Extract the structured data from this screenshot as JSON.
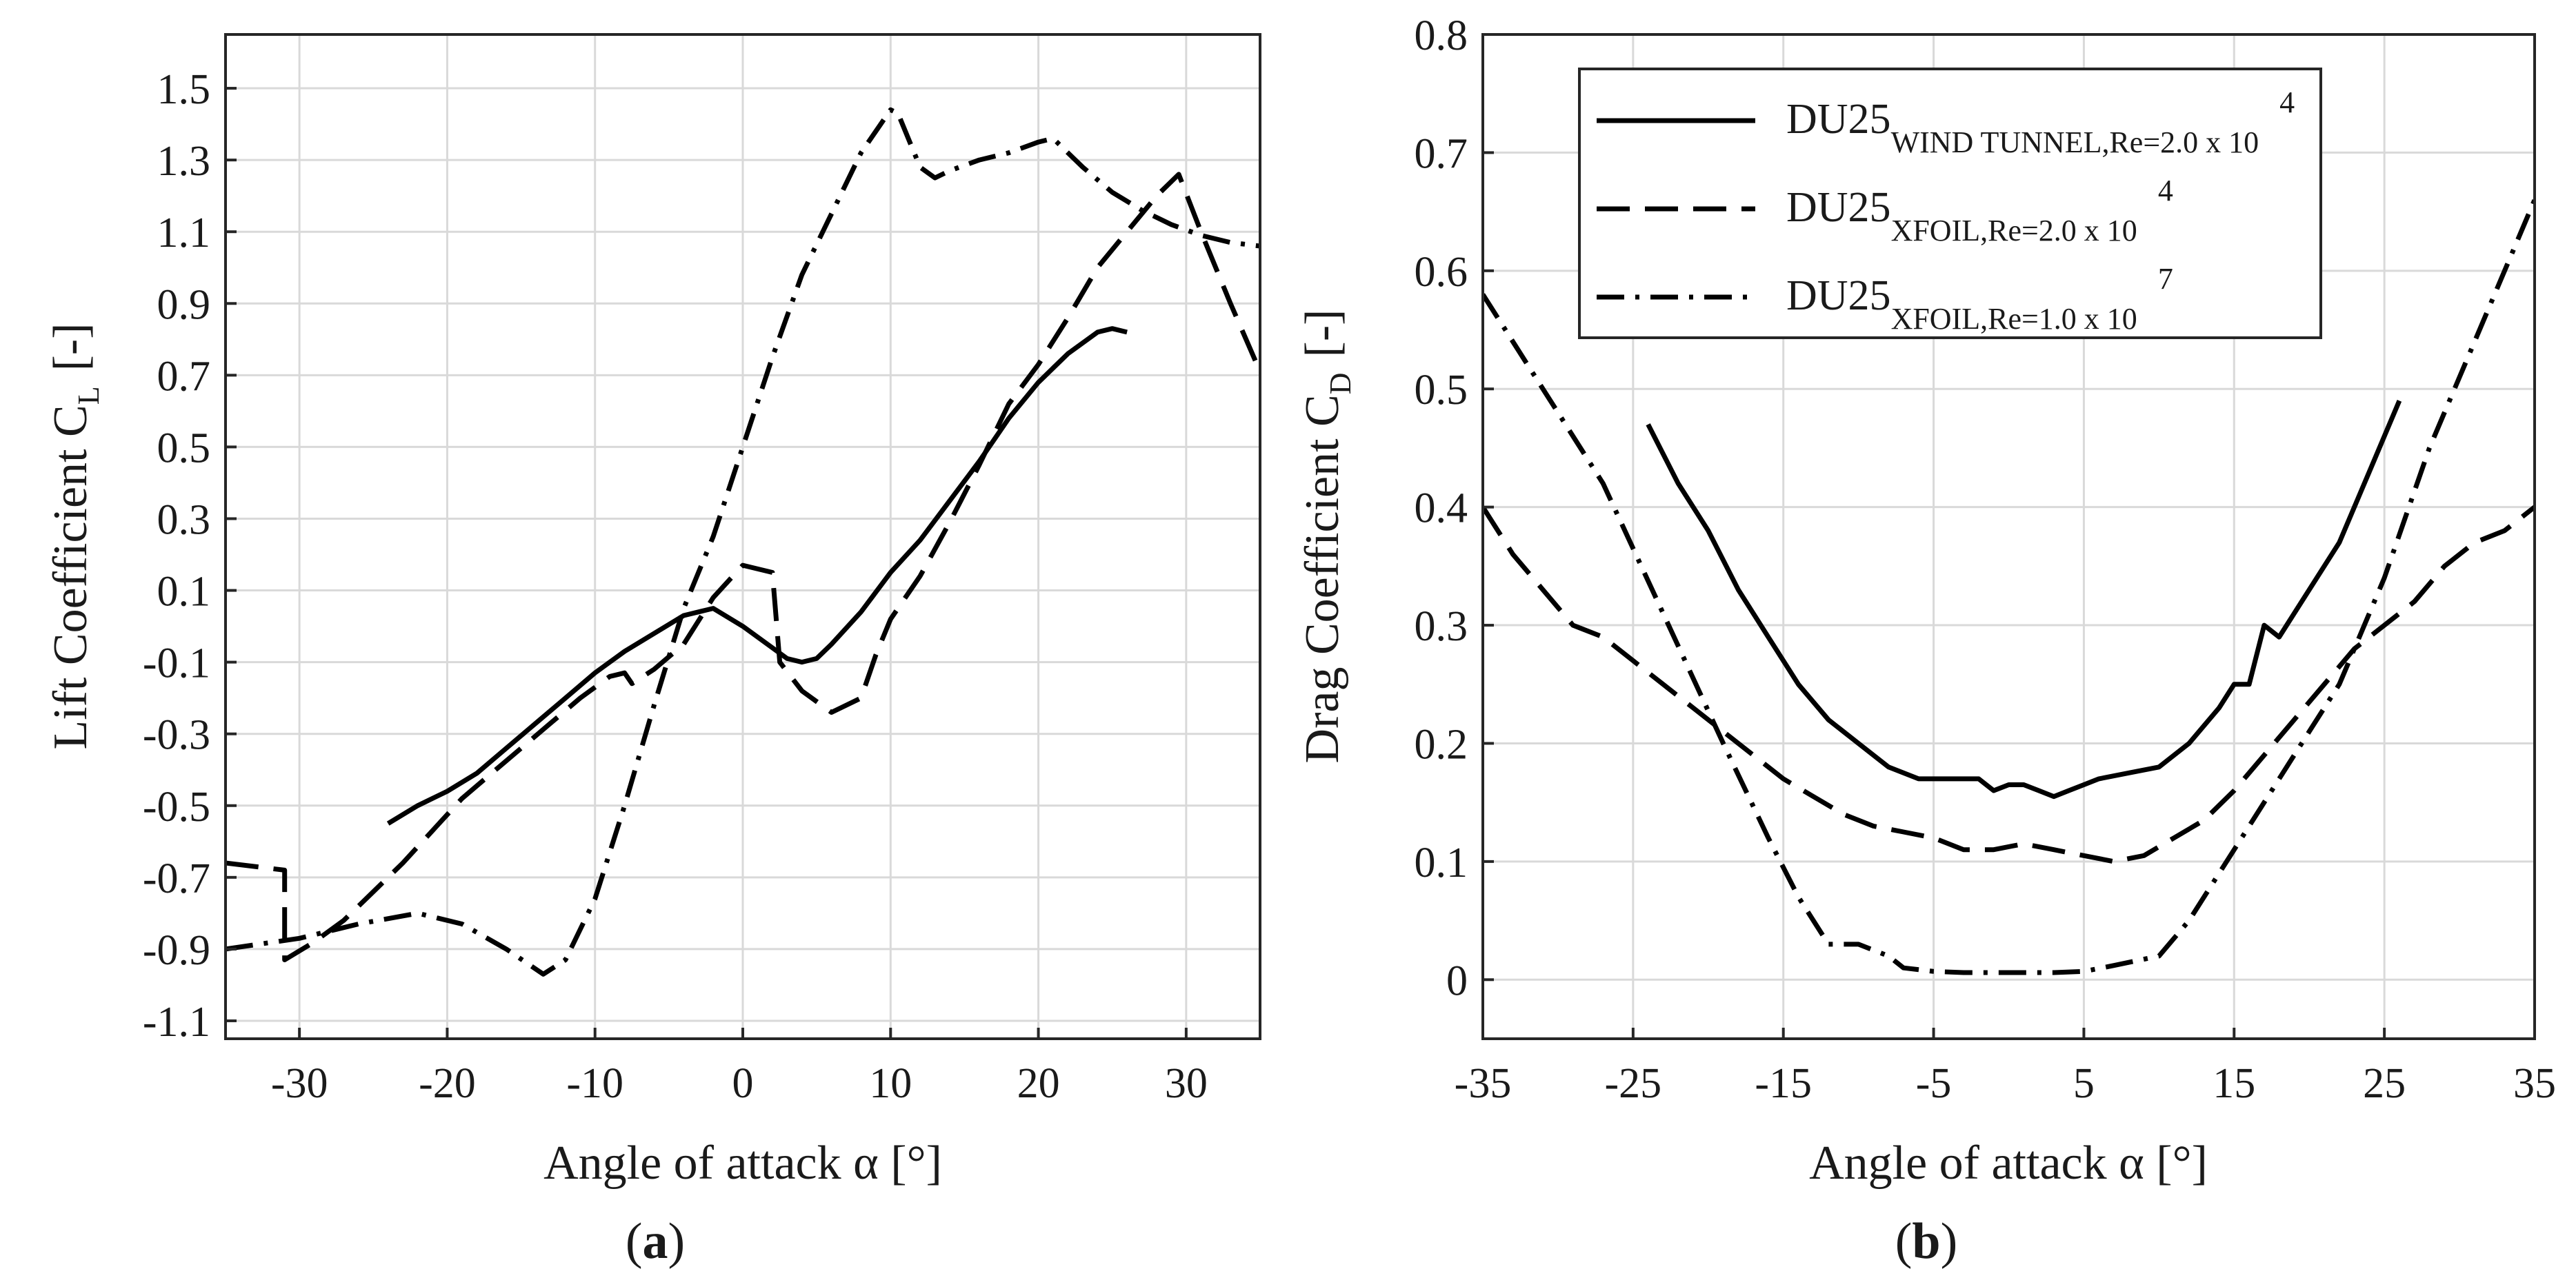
{
  "figure": {
    "panels": [
      {
        "panel_label": "a",
        "xlabel": "Angle of attack α [°]",
        "ylabel": "Lift Coefficient C",
        "ylabel_sub": "L",
        "ylabel_unit": "[-]"
      },
      {
        "panel_label": "b",
        "xlabel": "Angle of attack α [°]",
        "ylabel": "Drag Coefficient C",
        "ylabel_sub": "D",
        "ylabel_unit": "[-]"
      }
    ]
  },
  "chart_data": [
    {
      "type": "line",
      "title": "(a)",
      "xlabel": "Angle of attack α [°]",
      "ylabel": "Lift Coefficient C_L [-]",
      "xlim": [
        -35,
        35
      ],
      "ylim": [
        -1.15,
        1.65
      ],
      "xticks": [
        -30,
        -20,
        -10,
        0,
        10,
        20,
        30
      ],
      "yticks": [
        -1.1,
        -0.9,
        -0.7,
        -0.5,
        -0.3,
        -0.1,
        0.1,
        0.3,
        0.5,
        0.7,
        0.9,
        1.1,
        1.3,
        1.5
      ],
      "ytick_labels": [
        "-1.1",
        "-0.9",
        "-0.7",
        "-0.5",
        "-0.3",
        "-0.1",
        "0.1",
        "0.3",
        "0.5",
        "0.7",
        "0.9",
        "1.1",
        "1.3",
        "1.5"
      ],
      "grid": true,
      "series": [
        {
          "name": "DU25 WIND TUNNEL, Re=2.0 x 10^4",
          "style": "solid",
          "x": [
            -24,
            -22,
            -20,
            -18,
            -16,
            -14,
            -12,
            -10,
            -8,
            -6,
            -4,
            -2,
            0,
            2,
            3,
            4,
            5,
            6,
            8,
            10,
            12,
            14,
            16,
            18,
            20,
            22,
            24,
            25,
            26
          ],
          "y": [
            -0.55,
            -0.5,
            -0.46,
            -0.41,
            -0.34,
            -0.27,
            -0.2,
            -0.13,
            -0.07,
            -0.02,
            0.03,
            0.05,
            0.0,
            -0.06,
            -0.09,
            -0.1,
            -0.09,
            -0.05,
            0.04,
            0.15,
            0.24,
            0.35,
            0.46,
            0.58,
            0.68,
            0.76,
            0.82,
            0.83,
            0.82
          ]
        },
        {
          "name": "DU25 XFOIL, Re=2.0 x 10^4",
          "style": "dashed",
          "x": [
            -35,
            -31,
            -31,
            -29,
            -27,
            -25,
            -23,
            -21,
            -19,
            -17,
            -15,
            -13,
            -11,
            -9,
            -8,
            -7.5,
            -6,
            -4,
            -2,
            0,
            2,
            2.5,
            4,
            6,
            8,
            9,
            10,
            12,
            14,
            16,
            18,
            20,
            22,
            24,
            26,
            28,
            29.5,
            31,
            33,
            35
          ],
          "y": [
            -0.66,
            -0.68,
            -0.93,
            -0.88,
            -0.82,
            -0.74,
            -0.66,
            -0.57,
            -0.48,
            -0.41,
            -0.34,
            -0.27,
            -0.2,
            -0.14,
            -0.13,
            -0.16,
            -0.12,
            -0.05,
            0.08,
            0.17,
            0.15,
            -0.1,
            -0.18,
            -0.24,
            -0.2,
            -0.08,
            0.02,
            0.14,
            0.29,
            0.45,
            0.62,
            0.73,
            0.86,
            1.0,
            1.1,
            1.2,
            1.26,
            1.1,
            0.9,
            0.71
          ]
        },
        {
          "name": "DU25 XFOIL, Re=1.0 x 10^7",
          "style": "dashdot",
          "x": [
            -35,
            -30,
            -26,
            -22,
            -19,
            -16,
            -13.5,
            -12,
            -10,
            -8,
            -6,
            -4,
            -2,
            0,
            2,
            4,
            6,
            8,
            10,
            10.5,
            12,
            13,
            14,
            16,
            18,
            20,
            21,
            23,
            25,
            27,
            29,
            31,
            33,
            35
          ],
          "y": [
            -0.9,
            -0.87,
            -0.83,
            -0.8,
            -0.83,
            -0.9,
            -0.97,
            -0.93,
            -0.76,
            -0.5,
            -0.22,
            0.05,
            0.25,
            0.5,
            0.75,
            0.98,
            1.15,
            1.32,
            1.44,
            1.43,
            1.28,
            1.25,
            1.27,
            1.3,
            1.32,
            1.35,
            1.36,
            1.28,
            1.21,
            1.16,
            1.12,
            1.09,
            1.07,
            1.06
          ]
        }
      ]
    },
    {
      "type": "line",
      "title": "(b)",
      "xlabel": "Angle of attack α [°]",
      "ylabel": "Drag Coefficient C_D [-]",
      "xlim": [
        -35,
        35
      ],
      "ylim": [
        -0.05,
        0.8
      ],
      "xticks": [
        -35,
        -25,
        -15,
        -5,
        5,
        15,
        25,
        35
      ],
      "yticks": [
        0,
        0.1,
        0.2,
        0.3,
        0.4,
        0.5,
        0.6,
        0.7,
        0.8
      ],
      "ytick_labels": [
        "0",
        "0.1",
        "0.2",
        "0.3",
        "0.4",
        "0.5",
        "0.6",
        "0.7",
        "0.8"
      ],
      "grid": true,
      "legend_position": "top-right",
      "legend": [
        {
          "base": "DU25",
          "sub": "WIND TUNNEL,Re=2.0 x 10",
          "sup": "4",
          "style": "solid"
        },
        {
          "base": "DU25",
          "sub": "XFOIL,Re=2.0 x 10",
          "sup": "4",
          "style": "dashed"
        },
        {
          "base": "DU25",
          "sub": "XFOIL,Re=1.0 x 10",
          "sup": "7",
          "style": "dashdot"
        }
      ],
      "series": [
        {
          "name": "DU25 WIND TUNNEL, Re=2.0 x 10^4",
          "style": "solid",
          "x": [
            -24,
            -22,
            -20,
            -18,
            -16,
            -14,
            -12,
            -10,
            -8,
            -6,
            -4,
            -2,
            -1,
            0,
            1,
            2,
            3,
            4,
            5,
            6,
            8,
            10,
            12,
            14,
            15,
            16,
            17,
            18,
            20,
            22,
            24,
            26
          ],
          "y": [
            0.47,
            0.42,
            0.38,
            0.33,
            0.29,
            0.25,
            0.22,
            0.2,
            0.18,
            0.17,
            0.17,
            0.17,
            0.16,
            0.165,
            0.165,
            0.16,
            0.155,
            0.16,
            0.165,
            0.17,
            0.175,
            0.18,
            0.2,
            0.23,
            0.25,
            0.25,
            0.3,
            0.29,
            0.33,
            0.37,
            0.43,
            0.49
          ]
        },
        {
          "name": "DU25 XFOIL, Re=2.0 x 10^4",
          "style": "dashed",
          "x": [
            -35,
            -33,
            -31,
            -29,
            -27,
            -25,
            -23,
            -21,
            -19,
            -17,
            -15,
            -13,
            -11,
            -9,
            -7,
            -5,
            -3,
            -1,
            1,
            3,
            5,
            7,
            9,
            11,
            13,
            15,
            17,
            19,
            21,
            23,
            25,
            27,
            29,
            31,
            33,
            35
          ],
          "y": [
            0.4,
            0.36,
            0.33,
            0.3,
            0.29,
            0.27,
            0.25,
            0.23,
            0.21,
            0.19,
            0.17,
            0.155,
            0.14,
            0.13,
            0.125,
            0.12,
            0.11,
            0.11,
            0.115,
            0.11,
            0.105,
            0.1,
            0.105,
            0.12,
            0.135,
            0.16,
            0.19,
            0.22,
            0.25,
            0.28,
            0.3,
            0.32,
            0.35,
            0.37,
            0.38,
            0.4
          ]
        },
        {
          "name": "DU25 XFOIL, Re=1.0 x 10^7",
          "style": "dashdot",
          "x": [
            -35,
            -31,
            -27,
            -23,
            -19,
            -16,
            -14,
            -12,
            -10,
            -8,
            -7,
            -5,
            -3,
            -1,
            1,
            3,
            5,
            7,
            10,
            12,
            14,
            16,
            18,
            20,
            22,
            25,
            28,
            31,
            35
          ],
          "y": [
            0.58,
            0.5,
            0.42,
            0.31,
            0.2,
            0.12,
            0.07,
            0.03,
            0.03,
            0.02,
            0.01,
            0.007,
            0.006,
            0.006,
            0.006,
            0.006,
            0.007,
            0.012,
            0.02,
            0.05,
            0.09,
            0.13,
            0.17,
            0.21,
            0.25,
            0.34,
            0.45,
            0.54,
            0.66
          ]
        }
      ]
    }
  ]
}
